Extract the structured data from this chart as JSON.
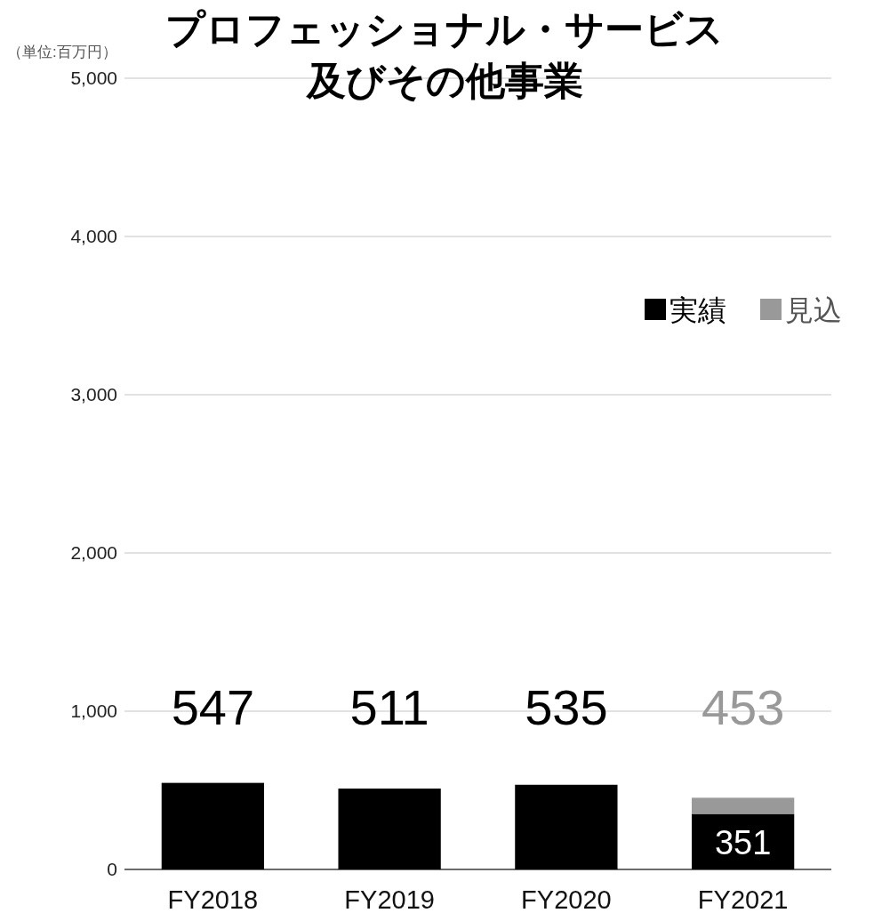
{
  "chart_data": {
    "type": "bar",
    "title": "プロフェッショナル・サービス及びその他事業",
    "ylabel": "（単位:百万円）",
    "categories": [
      "FY2018",
      "FY2019",
      "FY2020",
      "FY2021"
    ],
    "stacked": true,
    "series": [
      {
        "name": "実績",
        "color": "#000000",
        "values": [
          547,
          511,
          535,
          351
        ],
        "value_labels": [
          null,
          null,
          null,
          "351"
        ]
      },
      {
        "name": "見込",
        "color": "#999999",
        "values": [
          null,
          null,
          null,
          102
        ]
      }
    ],
    "totals": [
      "547",
      "511",
      "535",
      "453"
    ],
    "ylim": [
      0,
      5000
    ],
    "yticks": [
      0,
      {
        "value": 1000,
        "label": "1,000"
      },
      {
        "value": 2000,
        "label": "2,000"
      },
      {
        "value": 3000,
        "label": "3,000"
      },
      {
        "value": 4000,
        "label": "4,000"
      },
      {
        "value": 5000,
        "label": "5,000"
      }
    ],
    "grid": "y",
    "legend": "top right"
  }
}
